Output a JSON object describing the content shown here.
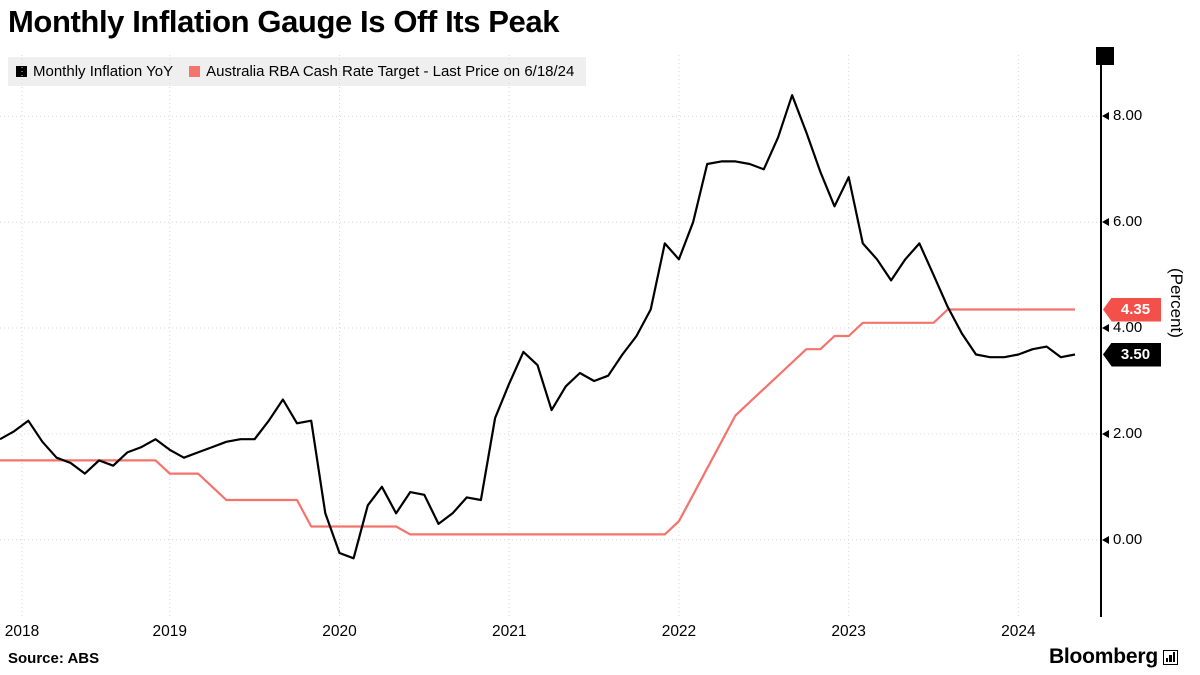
{
  "title": "Monthly Inflation Gauge Is Off Its Peak",
  "legend": [
    {
      "label": "Monthly Inflation YoY",
      "color": "#000000"
    },
    {
      "label": "Australia RBA Cash Rate Target - Last Price on 6/18/24",
      "color": "#f4736c"
    }
  ],
  "axis_label_right": "(Percent)",
  "source": "Source: ABS",
  "brand": "Bloomberg",
  "last_price_badges": [
    {
      "label": "4.35",
      "value": 4.35,
      "bg": "#f4504a"
    },
    {
      "label": "3.50",
      "value": 3.5,
      "bg": "#000000"
    }
  ],
  "chart_data": {
    "type": "line",
    "freq": "monthly",
    "x_start": "2018-01",
    "x_end": "2024-05",
    "x_tick_labels": [
      "2018",
      "2019",
      "2020",
      "2021",
      "2022",
      "2023",
      "2024"
    ],
    "y_ticks": [
      0,
      2,
      4,
      6,
      8
    ],
    "y_tick_labels": [
      "0.00",
      "2.00",
      "4.00",
      "6.00",
      "8.00"
    ],
    "ylim": [
      -1.46,
      9.16
    ],
    "grid": "dotted",
    "legend_position": "top-left",
    "series": [
      {
        "name": "Monthly Inflation YoY",
        "color": "#000000",
        "last_price": 3.5,
        "values": [
          1.9,
          2.05,
          2.25,
          1.85,
          1.55,
          1.45,
          1.25,
          1.5,
          1.4,
          1.65,
          1.75,
          1.9,
          1.7,
          1.55,
          1.65,
          1.75,
          1.85,
          1.9,
          1.9,
          2.25,
          2.65,
          2.2,
          2.25,
          0.5,
          -0.25,
          -0.35,
          0.65,
          1.0,
          0.5,
          0.9,
          0.85,
          0.3,
          0.5,
          0.8,
          0.75,
          2.3,
          2.95,
          3.55,
          3.3,
          2.45,
          2.9,
          3.15,
          3.0,
          3.1,
          3.5,
          3.85,
          4.35,
          5.6,
          5.3,
          6.0,
          7.1,
          7.15,
          7.15,
          7.1,
          7.0,
          7.6,
          8.4,
          7.7,
          6.95,
          6.3,
          6.85,
          5.6,
          5.3,
          4.9,
          5.3,
          5.6,
          5.0,
          4.4,
          3.9,
          3.5,
          3.45,
          3.45,
          3.5,
          3.6,
          3.65,
          3.45,
          3.5
        ]
      },
      {
        "name": "Australia RBA Cash Rate Target",
        "color": "#f4736c",
        "last_price": 4.35,
        "values": [
          1.5,
          1.5,
          1.5,
          1.5,
          1.5,
          1.5,
          1.5,
          1.5,
          1.5,
          1.5,
          1.5,
          1.5,
          1.25,
          1.25,
          1.25,
          1.0,
          0.75,
          0.75,
          0.75,
          0.75,
          0.75,
          0.75,
          0.25,
          0.25,
          0.25,
          0.25,
          0.25,
          0.25,
          0.25,
          0.1,
          0.1,
          0.1,
          0.1,
          0.1,
          0.1,
          0.1,
          0.1,
          0.1,
          0.1,
          0.1,
          0.1,
          0.1,
          0.1,
          0.1,
          0.1,
          0.1,
          0.1,
          0.1,
          0.35,
          0.85,
          1.35,
          1.85,
          2.35,
          2.6,
          2.85,
          3.1,
          3.35,
          3.6,
          3.6,
          3.85,
          3.85,
          4.1,
          4.1,
          4.1,
          4.1,
          4.1,
          4.1,
          4.35,
          4.35,
          4.35,
          4.35,
          4.35,
          4.35,
          4.35,
          4.35,
          4.35,
          4.35
        ]
      }
    ]
  }
}
